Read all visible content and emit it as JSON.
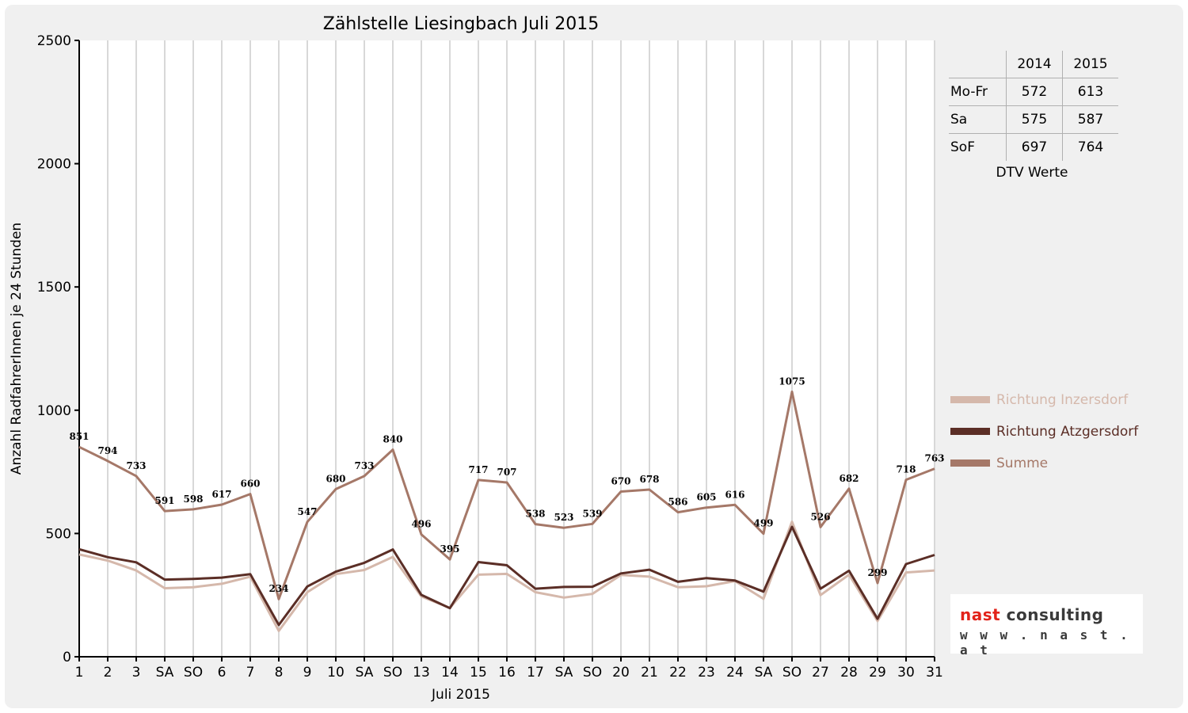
{
  "chart_data": {
    "type": "line",
    "title": "Zählstelle Liesingbach Juli 2015",
    "xlabel": "Juli 2015",
    "ylabel": "Anzahl RadfahrerInnen je 24 Stunden",
    "ylim": [
      0,
      2500
    ],
    "yticks": [
      "0",
      "500",
      "1000",
      "1500",
      "2000",
      "2500"
    ],
    "grid": true,
    "legend_position": "right",
    "categories": [
      "1",
      "2",
      "3",
      "SA",
      "SO",
      "6",
      "7",
      "8",
      "9",
      "10",
      "SA",
      "SO",
      "13",
      "14",
      "15",
      "16",
      "17",
      "SA",
      "SO",
      "20",
      "21",
      "22",
      "23",
      "24",
      "SA",
      "SO",
      "27",
      "28",
      "29",
      "30",
      "31"
    ],
    "category_colors": [
      "#000000",
      "#000000",
      "#000000",
      "#000000",
      "#ee0000",
      "#000000",
      "#000000",
      "#000000",
      "#000000",
      "#000000",
      "#000000",
      "#ee0000",
      "#000000",
      "#000000",
      "#000000",
      "#000000",
      "#000000",
      "#000000",
      "#ee0000",
      "#000000",
      "#000000",
      "#000000",
      "#000000",
      "#000000",
      "#000000",
      "#ee0000",
      "#000000",
      "#000000",
      "#000000",
      "#000000",
      "#000000"
    ],
    "series": [
      {
        "name": "Richtung Inzersdorf",
        "color": "#d5b8ab",
        "values": [
          415,
          390,
          350,
          278,
          282,
          296,
          325,
          105,
          262,
          335,
          352,
          405,
          245,
          198,
          333,
          336,
          262,
          240,
          255,
          332,
          325,
          282,
          286,
          307,
          235,
          548,
          250,
          333,
          145,
          342,
          350
        ]
      },
      {
        "name": "Richtung Atzgersdorf",
        "color": "#5b2e26",
        "values": [
          436,
          404,
          383,
          313,
          316,
          321,
          335,
          129,
          285,
          345,
          381,
          435,
          251,
          197,
          384,
          371,
          276,
          283,
          284,
          338,
          353,
          304,
          319,
          309,
          264,
          527,
          276,
          349,
          154,
          376,
          413
        ]
      },
      {
        "name": "Summe",
        "color": "#a57868",
        "values": [
          851,
          794,
          733,
          591,
          598,
          617,
          660,
          234,
          547,
          680,
          733,
          840,
          496,
          395,
          717,
          707,
          538,
          523,
          539,
          670,
          678,
          586,
          605,
          616,
          499,
          1075,
          526,
          682,
          299,
          718,
          763
        ]
      }
    ],
    "data_labels": [
      "851",
      "794",
      "733",
      "591",
      "598",
      "617",
      "660",
      "234",
      "547",
      "680",
      "733",
      "840",
      "496",
      "395",
      "717",
      "707",
      "538",
      "523",
      "539",
      "670",
      "678",
      "586",
      "605",
      "616",
      "499",
      "1075",
      "526",
      "682",
      "299",
      "718",
      "763"
    ]
  },
  "dtv_table": {
    "headers": [
      "",
      "2014",
      "2015"
    ],
    "rows": [
      {
        "label": "Mo-Fr",
        "v2014": "572",
        "v2015": "613"
      },
      {
        "label": "Sa",
        "v2014": "575",
        "v2015": "587"
      },
      {
        "label": "SoF",
        "v2014": "697",
        "v2015": "764"
      }
    ],
    "caption": "DTV Werte"
  },
  "logo": {
    "brand_part1": "nast",
    "brand_part2": "consulting",
    "url": "w w w . n a s t . a t"
  }
}
